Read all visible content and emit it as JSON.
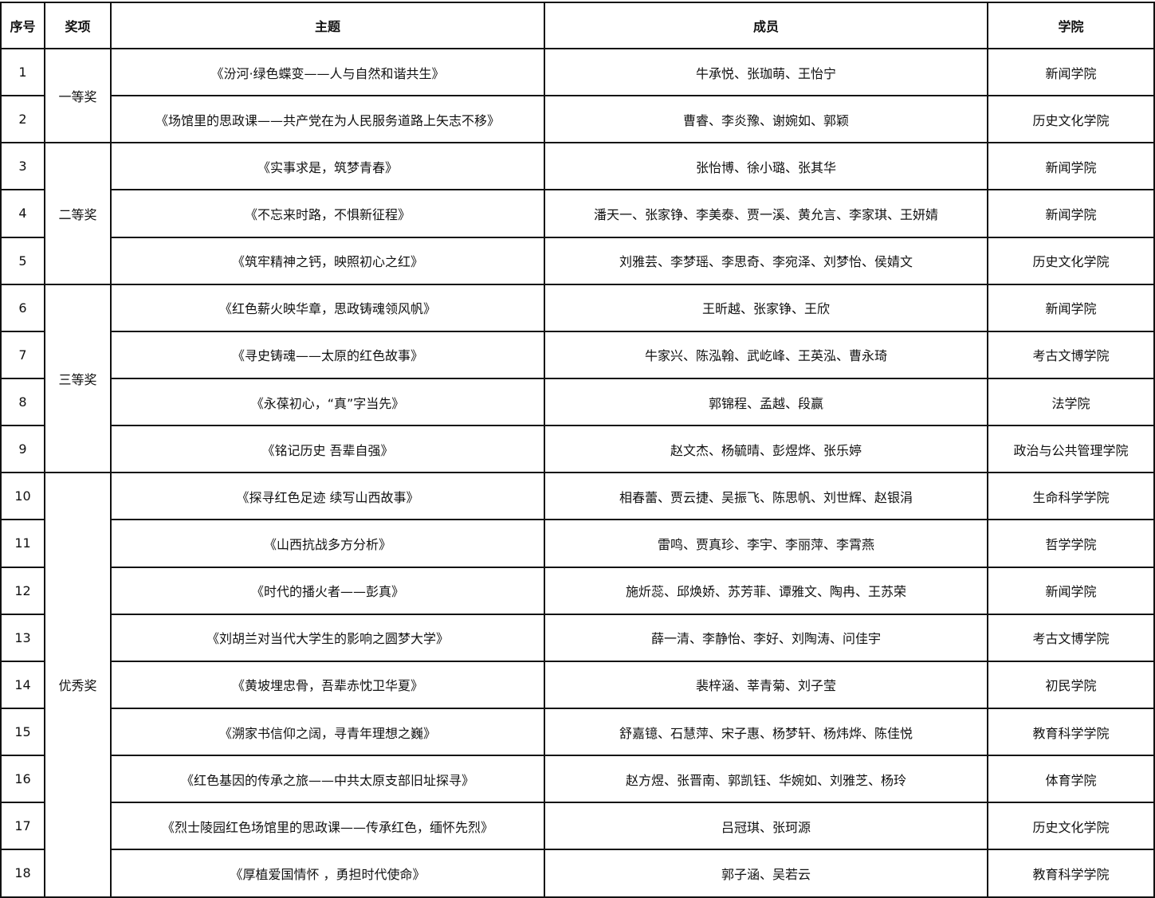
{
  "headers": [
    "序号",
    "奖项",
    "主题",
    "成员",
    "学院"
  ],
  "awards": [
    {
      "label": "一等奖",
      "rows": [
        {
          "no": "1",
          "topic": "《汾河·绿色蝶变——人与自然和谐共生》",
          "members": "牛承悦、张珈萌、王怡宁",
          "college": "新闻学院"
        },
        {
          "no": "2",
          "topic": "《场馆里的思政课——共产党在为人民服务道路上矢志不移》",
          "members": "曹睿、李炎豫、谢婉如、郭颖",
          "college": "历史文化学院"
        }
      ]
    },
    {
      "label": "二等奖",
      "rows": [
        {
          "no": "3",
          "topic": "《实事求是，筑梦青春》",
          "members": "张怡博、徐小璐、张其华",
          "college": "新闻学院"
        },
        {
          "no": "4",
          "topic": "《不忘来时路，不惧新征程》",
          "members": "潘天一、张家铮、李美泰、贾一溪、黄允言、李家琪、王妍婧",
          "college": "新闻学院"
        },
        {
          "no": "5",
          "topic": "《筑牢精神之钙，映照初心之红》",
          "members": "刘雅芸、李梦瑶、李思奇、李宛泽、刘梦怡、侯婧文",
          "college": "历史文化学院"
        }
      ]
    },
    {
      "label": "三等奖",
      "rows": [
        {
          "no": "6",
          "topic": "《红色薪火映华章，思政铸魂领风帆》",
          "members": "王昕越、张家铮、王欣",
          "college": "新闻学院"
        },
        {
          "no": "7",
          "topic": "《寻史铸魂——太原的红色故事》",
          "members": "牛家兴、陈泓翰、武屹峰、王英泓、曹永琦",
          "college": "考古文博学院"
        },
        {
          "no": "8",
          "topic": "《永葆初心，“真”字当先》",
          "members": "郭锦程、孟越、段赢",
          "college": "法学院"
        },
        {
          "no": "9",
          "topic": "《铭记历史 吾辈自强》",
          "members": "赵文杰、杨毓晴、彭煜烨、张乐婷",
          "college": "政治与公共管理学院"
        }
      ]
    },
    {
      "label": "优秀奖",
      "rows": [
        {
          "no": "10",
          "topic": "《探寻红色足迹 续写山西故事》",
          "members": "相春蕾、贾云捷、吴振飞、陈思帆、刘世辉、赵银涓",
          "college": "生命科学学院"
        },
        {
          "no": "11",
          "topic": "《山西抗战多方分析》",
          "members": "雷鸣、贾真珍、李宇、李丽萍、李霄燕",
          "college": "哲学学院"
        },
        {
          "no": "12",
          "topic": "《时代的播火者——彭真》",
          "members": "施炘蕊、邱焕娇、苏芳菲、谭雅文、陶冉、王苏荣",
          "college": "新闻学院"
        },
        {
          "no": "13",
          "topic": "《刘胡兰对当代大学生的影响之圆梦大学》",
          "members": "薛一清、李静怡、李好、刘陶涛、问佳宇",
          "college": "考古文博学院"
        },
        {
          "no": "14",
          "topic": "《黄坡埋忠骨，吾辈赤忱卫华夏》",
          "members": "裴梓涵、莘青菊、刘子莹",
          "college": "初民学院"
        },
        {
          "no": "15",
          "topic": "《溯家书信仰之阔，寻青年理想之巍》",
          "members": "舒嘉镱、石慧萍、宋子惠、杨梦轩、杨炜烨、陈佳悦",
          "college": "教育科学学院"
        },
        {
          "no": "16",
          "topic": "《红色基因的传承之旅——中共太原支部旧址探寻》",
          "members": "赵方煜、张晋南、郭凯钰、华婉如、刘雅芝、杨玲",
          "college": "体育学院"
        },
        {
          "no": "17",
          "topic": "《烈士陵园红色场馆里的思政课——传承红色，缅怀先烈》",
          "members": "吕冠琪、张珂源",
          "college": "历史文化学院"
        },
        {
          "no": "18",
          "topic": "《厚植爱国情怀 ，勇担时代使命》",
          "members": "郭子涵、吴若云",
          "college": "教育科学学院"
        }
      ]
    }
  ]
}
